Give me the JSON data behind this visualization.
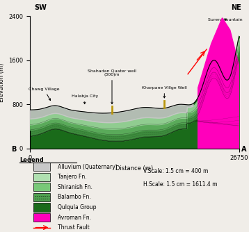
{
  "xlabel": "Distance (m)",
  "ylabel": "Elevation (m)",
  "xlim": [
    0,
    26750
  ],
  "ylim": [
    0,
    2400
  ],
  "yticks": [
    0,
    800,
    1600,
    2400
  ],
  "xticks": [
    0,
    26750
  ],
  "bg_color": "#f0ede8",
  "legend_items": [
    {
      "label": "Alluvium (Quaternary)",
      "color": "#c8c8c8"
    },
    {
      "label": "Tanjero Fn.",
      "color": "#b0e0b0"
    },
    {
      "label": "Shiranish Fn.",
      "color": "#78c878"
    },
    {
      "label": "Balambo Fn.",
      "color": "#50a050"
    },
    {
      "label": "Qulqula Group",
      "color": "#1a6b1a"
    },
    {
      "label": "Avroman Fn.",
      "color": "#ff00bb"
    }
  ],
  "scale_text": [
    "V.Scale: 1.5 cm = 400 m",
    "H.Scale: 1.5 cm = 1611.4 m"
  ]
}
